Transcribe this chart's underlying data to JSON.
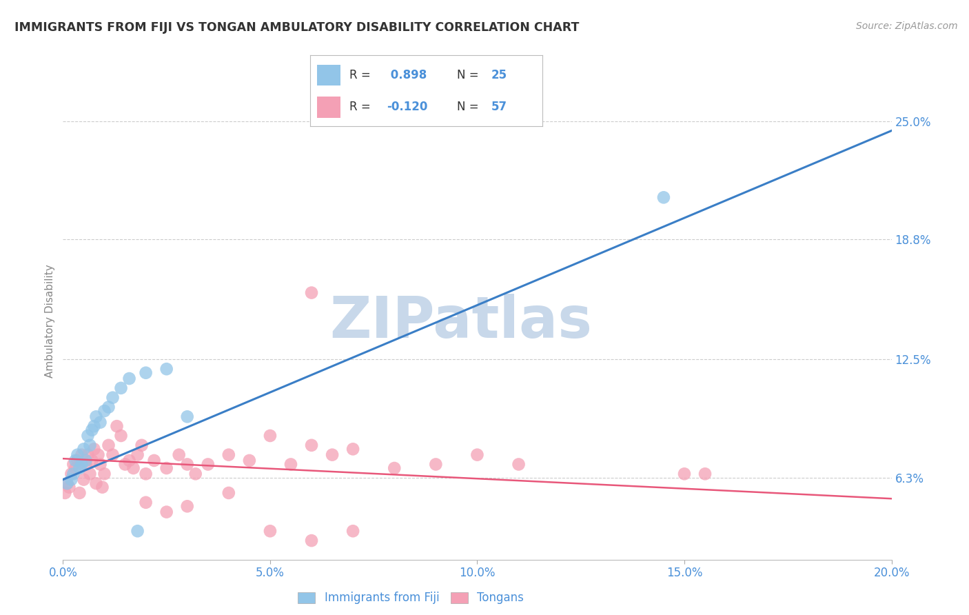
{
  "title": "IMMIGRANTS FROM FIJI VS TONGAN AMBULATORY DISABILITY CORRELATION CHART",
  "source": "Source: ZipAtlas.com",
  "ylabel_label": "Ambulatory Disability",
  "x_tick_labels": [
    "0.0%",
    "5.0%",
    "10.0%",
    "15.0%",
    "20.0%"
  ],
  "x_tick_positions": [
    0.0,
    5.0,
    10.0,
    15.0,
    20.0
  ],
  "y_tick_labels": [
    "6.3%",
    "12.5%",
    "18.8%",
    "25.0%"
  ],
  "y_tick_positions": [
    6.3,
    12.5,
    18.8,
    25.0
  ],
  "xlim": [
    0.0,
    20.0
  ],
  "ylim": [
    2.0,
    27.0
  ],
  "fiji_color": "#92C5E8",
  "tongan_color": "#F4A0B5",
  "fiji_line_color": "#3A7EC6",
  "tongan_line_color": "#E8577A",
  "fiji_R": 0.898,
  "fiji_N": 25,
  "tongan_R": -0.12,
  "tongan_N": 57,
  "fiji_scatter_x": [
    0.1,
    0.2,
    0.25,
    0.3,
    0.35,
    0.4,
    0.45,
    0.5,
    0.55,
    0.6,
    0.65,
    0.7,
    0.75,
    0.8,
    0.9,
    1.0,
    1.1,
    1.2,
    1.4,
    1.6,
    1.8,
    2.0,
    2.5,
    3.0,
    14.5
  ],
  "fiji_scatter_y": [
    6.0,
    6.2,
    6.5,
    7.2,
    7.5,
    6.8,
    7.0,
    7.8,
    7.2,
    8.5,
    8.0,
    8.8,
    9.0,
    9.5,
    9.2,
    9.8,
    10.0,
    10.5,
    11.0,
    11.5,
    3.5,
    11.8,
    12.0,
    9.5,
    21.0
  ],
  "tongan_scatter_x": [
    0.05,
    0.1,
    0.15,
    0.2,
    0.25,
    0.3,
    0.35,
    0.4,
    0.45,
    0.5,
    0.55,
    0.6,
    0.65,
    0.7,
    0.75,
    0.8,
    0.85,
    0.9,
    0.95,
    1.0,
    1.1,
    1.2,
    1.3,
    1.4,
    1.5,
    1.6,
    1.7,
    1.8,
    1.9,
    2.0,
    2.2,
    2.5,
    2.8,
    3.0,
    3.2,
    3.5,
    4.0,
    4.5,
    5.0,
    5.5,
    6.0,
    6.5,
    7.0,
    8.0,
    9.0,
    10.0,
    11.0,
    2.0,
    2.5,
    3.0,
    4.0,
    5.0,
    6.0,
    7.0,
    15.0,
    15.5,
    6.0
  ],
  "tongan_scatter_y": [
    5.5,
    6.0,
    5.8,
    6.5,
    7.0,
    6.8,
    7.2,
    5.5,
    7.5,
    6.2,
    7.0,
    7.5,
    6.5,
    7.2,
    7.8,
    6.0,
    7.5,
    7.0,
    5.8,
    6.5,
    8.0,
    7.5,
    9.0,
    8.5,
    7.0,
    7.2,
    6.8,
    7.5,
    8.0,
    6.5,
    7.2,
    6.8,
    7.5,
    7.0,
    6.5,
    7.0,
    7.5,
    7.2,
    8.5,
    7.0,
    8.0,
    7.5,
    7.8,
    6.8,
    7.0,
    7.5,
    7.0,
    5.0,
    4.5,
    4.8,
    5.5,
    3.5,
    3.0,
    3.5,
    6.5,
    6.5,
    16.0
  ],
  "fiji_line_x0": 0.0,
  "fiji_line_y0": 6.2,
  "fiji_line_x1": 20.0,
  "fiji_line_y1": 24.5,
  "tongan_line_x0": 0.0,
  "tongan_line_y0": 7.3,
  "tongan_line_x1": 20.0,
  "tongan_line_y1": 5.2,
  "watermark_text": "ZIPatlas",
  "watermark_color": "#c8d8ea",
  "background_color": "#ffffff",
  "grid_color": "#cccccc",
  "title_color": "#333333",
  "axis_label_color": "#888888",
  "tick_label_color": "#4a90d9",
  "source_color": "#999999",
  "legend_color_R_N": "#4a90d9",
  "legend_text_color": "#333333",
  "bottom_legend_label_color": "#4a90d9",
  "legend_fiji_label": "Immigrants from Fiji",
  "legend_tongan_label": "Tongans"
}
